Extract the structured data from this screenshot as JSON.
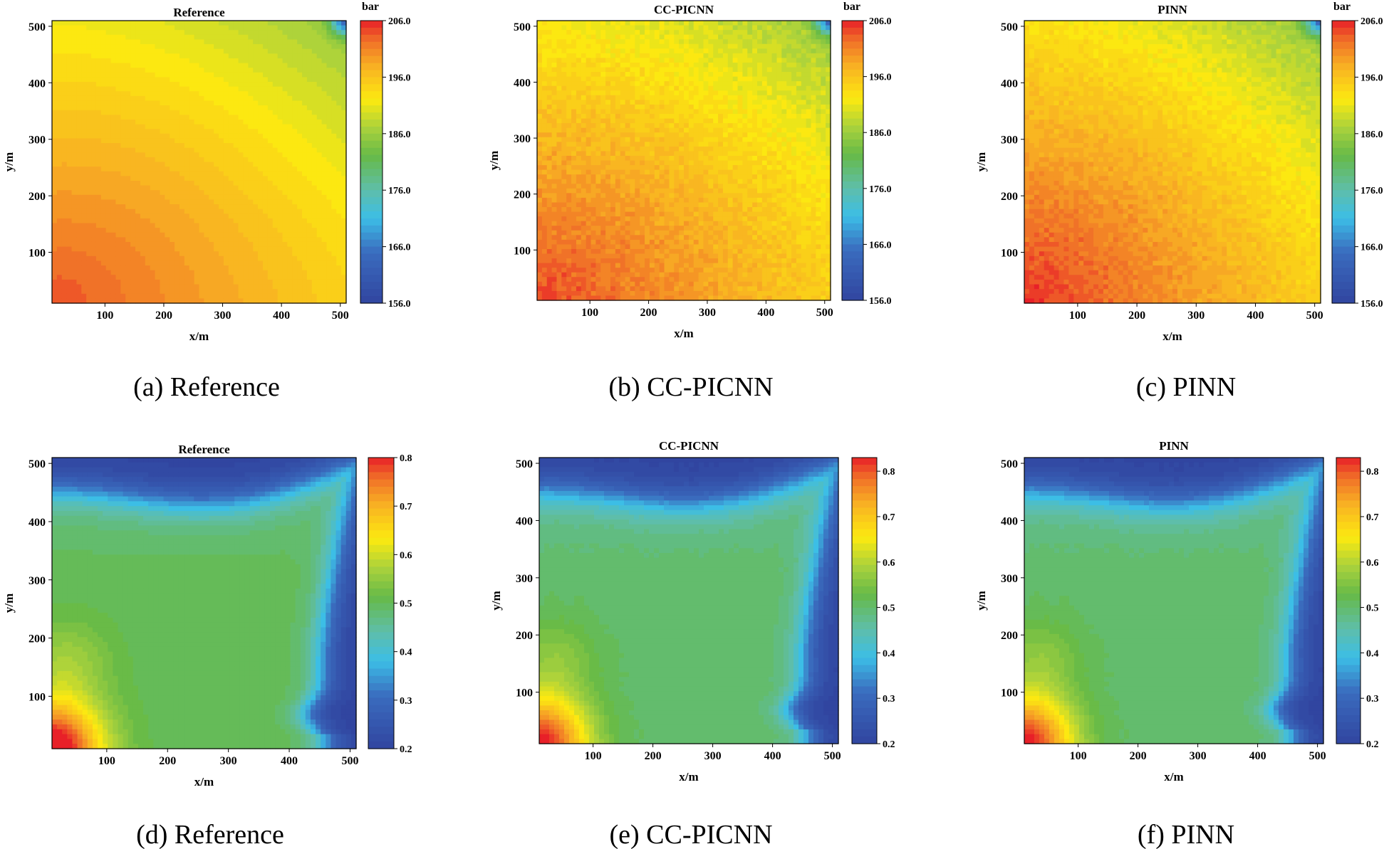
{
  "figure": {
    "panels": [
      {
        "title": "Reference",
        "caption": "(a) Reference",
        "field": "pressure",
        "colorbar_unit": "bar",
        "variant": "ref"
      },
      {
        "title": "CC-PICNN",
        "caption": "(b) CC-PICNN",
        "field": "pressure",
        "colorbar_unit": "bar",
        "variant": "cc"
      },
      {
        "title": "PINN",
        "caption": "(c) PINN",
        "field": "pressure",
        "colorbar_unit": "bar",
        "variant": "pinn"
      },
      {
        "title": "Reference",
        "caption": "(d) Reference",
        "field": "saturation",
        "colorbar_unit": "",
        "variant": "ref"
      },
      {
        "title": "CC-PICNN",
        "caption": "(e) CC-PICNN",
        "field": "saturation",
        "colorbar_unit": "",
        "variant": "cc"
      },
      {
        "title": "PINN",
        "caption": "(f) PINN",
        "field": "saturation",
        "colorbar_unit": "",
        "variant": "pinn"
      }
    ]
  },
  "chart_data": [
    {
      "type": "heatmap",
      "title": "Reference",
      "xlabel": "x/m",
      "ylabel": "y/m",
      "xticks": [
        "100",
        "200",
        "300",
        "400",
        "500"
      ],
      "yticks": [
        "100",
        "200",
        "300",
        "400",
        "500"
      ],
      "xlim": [
        10,
        510
      ],
      "ylim": [
        10,
        510
      ],
      "colorbar": {
        "label": "bar",
        "range": [
          156.0,
          206.0
        ],
        "ticks": [
          "156.0",
          "166.0",
          "176.0",
          "186.0",
          "196.0",
          "206.0"
        ]
      },
      "field_description": "pressure: ~204 at bottom-left, ~188 green at top-right, ~166 at top-right corner"
    },
    {
      "type": "heatmap",
      "title": "CC-PICNN",
      "xlabel": "x/m",
      "ylabel": "y/m",
      "xticks": [
        "100",
        "200",
        "300",
        "400",
        "500"
      ],
      "yticks": [
        "100",
        "200",
        "300",
        "400",
        "500"
      ],
      "xlim": [
        10,
        510
      ],
      "ylim": [
        10,
        510
      ],
      "colorbar": {
        "label": "bar",
        "range": [
          156.0,
          206.0
        ],
        "ticks": [
          "156.0",
          "166.0",
          "176.0",
          "186.0",
          "196.0",
          "206.0"
        ]
      },
      "field_description": "pressure: noisy version of reference"
    },
    {
      "type": "heatmap",
      "title": "PINN",
      "xlabel": "x/m",
      "ylabel": "y/m",
      "xticks": [
        "100",
        "200",
        "300",
        "400",
        "500"
      ],
      "yticks": [
        "100",
        "200",
        "300",
        "400",
        "500"
      ],
      "xlim": [
        10,
        510
      ],
      "ylim": [
        10,
        510
      ],
      "colorbar": {
        "label": "bar",
        "range": [
          156.0,
          206.0
        ],
        "ticks": [
          "156.0",
          "166.0",
          "176.0",
          "186.0",
          "196.0",
          "206.0"
        ]
      },
      "field_description": "pressure: noisy, slightly higher in lower-left"
    },
    {
      "type": "heatmap",
      "title": "Reference",
      "xlabel": "x/m",
      "ylabel": "y/m",
      "xticks": [
        "100",
        "200",
        "300",
        "400",
        "500"
      ],
      "yticks": [
        "100",
        "200",
        "300",
        "400",
        "500"
      ],
      "xlim": [
        10,
        510
      ],
      "ylim": [
        10,
        510
      ],
      "colorbar": {
        "label": "",
        "range": [
          0.2,
          0.8
        ],
        "ticks": [
          "0.2",
          "0.3",
          "0.4",
          "0.5",
          "0.6",
          "0.7",
          "0.8"
        ]
      },
      "field_description": "saturation: ~0.8 at bottom-left corner, ~0.5 interior, ~0.2 along top band and right edge"
    },
    {
      "type": "heatmap",
      "title": "CC-PICNN",
      "xlabel": "x/m",
      "ylabel": "y/m",
      "xticks": [
        "100",
        "200",
        "300",
        "400",
        "500"
      ],
      "yticks": [
        "100",
        "200",
        "300",
        "400",
        "500"
      ],
      "xlim": [
        10,
        510
      ],
      "ylim": [
        10,
        510
      ],
      "colorbar": {
        "label": "",
        "range": [
          0.2,
          0.83
        ],
        "ticks": [
          "0.2",
          "0.3",
          "0.4",
          "0.5",
          "0.6",
          "0.7",
          "0.8"
        ]
      },
      "field_description": "saturation: close match to reference"
    },
    {
      "type": "heatmap",
      "title": "PINN",
      "xlabel": "x/m",
      "ylabel": "y/m",
      "xticks": [
        "100",
        "200",
        "300",
        "400",
        "500"
      ],
      "yticks": [
        "100",
        "200",
        "300",
        "400",
        "500"
      ],
      "xlim": [
        10,
        510
      ],
      "ylim": [
        10,
        510
      ],
      "colorbar": {
        "label": "",
        "range": [
          0.2,
          0.83
        ],
        "ticks": [
          "0.2",
          "0.3",
          "0.4",
          "0.5",
          "0.6",
          "0.7",
          "0.8"
        ]
      },
      "field_description": "saturation: close match to reference"
    }
  ]
}
